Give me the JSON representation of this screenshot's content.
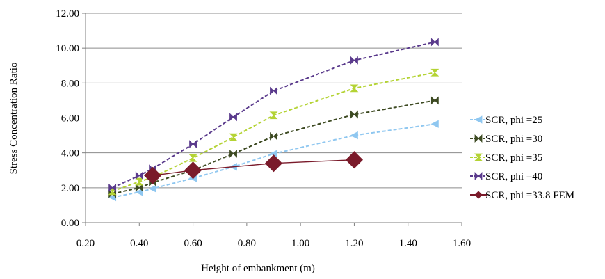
{
  "chart_data": {
    "type": "line",
    "title": "",
    "xlabel": "Height of embankment (m)",
    "ylabel": "Stress Concentration Ratio",
    "xlim": [
      0.2,
      1.6
    ],
    "ylim": [
      0,
      12
    ],
    "x_ticks": [
      "0.20",
      "0.40",
      "0.60",
      "0.80",
      "1.00",
      "1.20",
      "1.40",
      "1.60"
    ],
    "y_ticks": [
      "0.00",
      "2.00",
      "4.00",
      "6.00",
      "8.00",
      "10.00",
      "12.00"
    ],
    "grid": "horizontal",
    "legend_position": "right",
    "series": [
      {
        "name": "SCR, phi =25",
        "color": "#8FC7F0",
        "line_style": "dashed",
        "marker": "triangle-left",
        "x": [
          0.3,
          0.4,
          0.45,
          0.6,
          0.75,
          0.9,
          1.2,
          1.5
        ],
        "y": [
          1.45,
          1.75,
          1.95,
          2.55,
          3.2,
          3.95,
          5.0,
          5.65
        ]
      },
      {
        "name": "SCR, phi =30",
        "color": "#3D4A22",
        "line_style": "dashed",
        "marker": "bowtie",
        "x": [
          0.3,
          0.4,
          0.45,
          0.6,
          0.75,
          0.9,
          1.2,
          1.5
        ],
        "y": [
          1.65,
          2.0,
          2.3,
          3.0,
          3.95,
          4.95,
          6.2,
          7.0
        ]
      },
      {
        "name": "SCR, phi =35",
        "color": "#B4D334",
        "line_style": "dashed",
        "marker": "hourglass",
        "x": [
          0.3,
          0.4,
          0.45,
          0.6,
          0.75,
          0.9,
          1.2,
          1.5
        ],
        "y": [
          1.8,
          2.35,
          2.6,
          3.7,
          4.9,
          6.15,
          7.7,
          8.6
        ]
      },
      {
        "name": "SCR, phi =40",
        "color": "#5A3A8C",
        "line_style": "dashed",
        "marker": "bowtie",
        "x": [
          0.3,
          0.4,
          0.45,
          0.6,
          0.75,
          0.9,
          1.2,
          1.5
        ],
        "y": [
          2.0,
          2.7,
          3.1,
          4.5,
          6.05,
          7.55,
          9.3,
          10.35
        ]
      },
      {
        "name": "SCR, phi =33.8 FEM",
        "color": "#7A1A2A",
        "line_style": "solid",
        "marker": "diamond",
        "x": [
          0.45,
          0.6,
          0.9,
          1.2
        ],
        "y": [
          2.7,
          3.0,
          3.4,
          3.6
        ]
      }
    ]
  }
}
